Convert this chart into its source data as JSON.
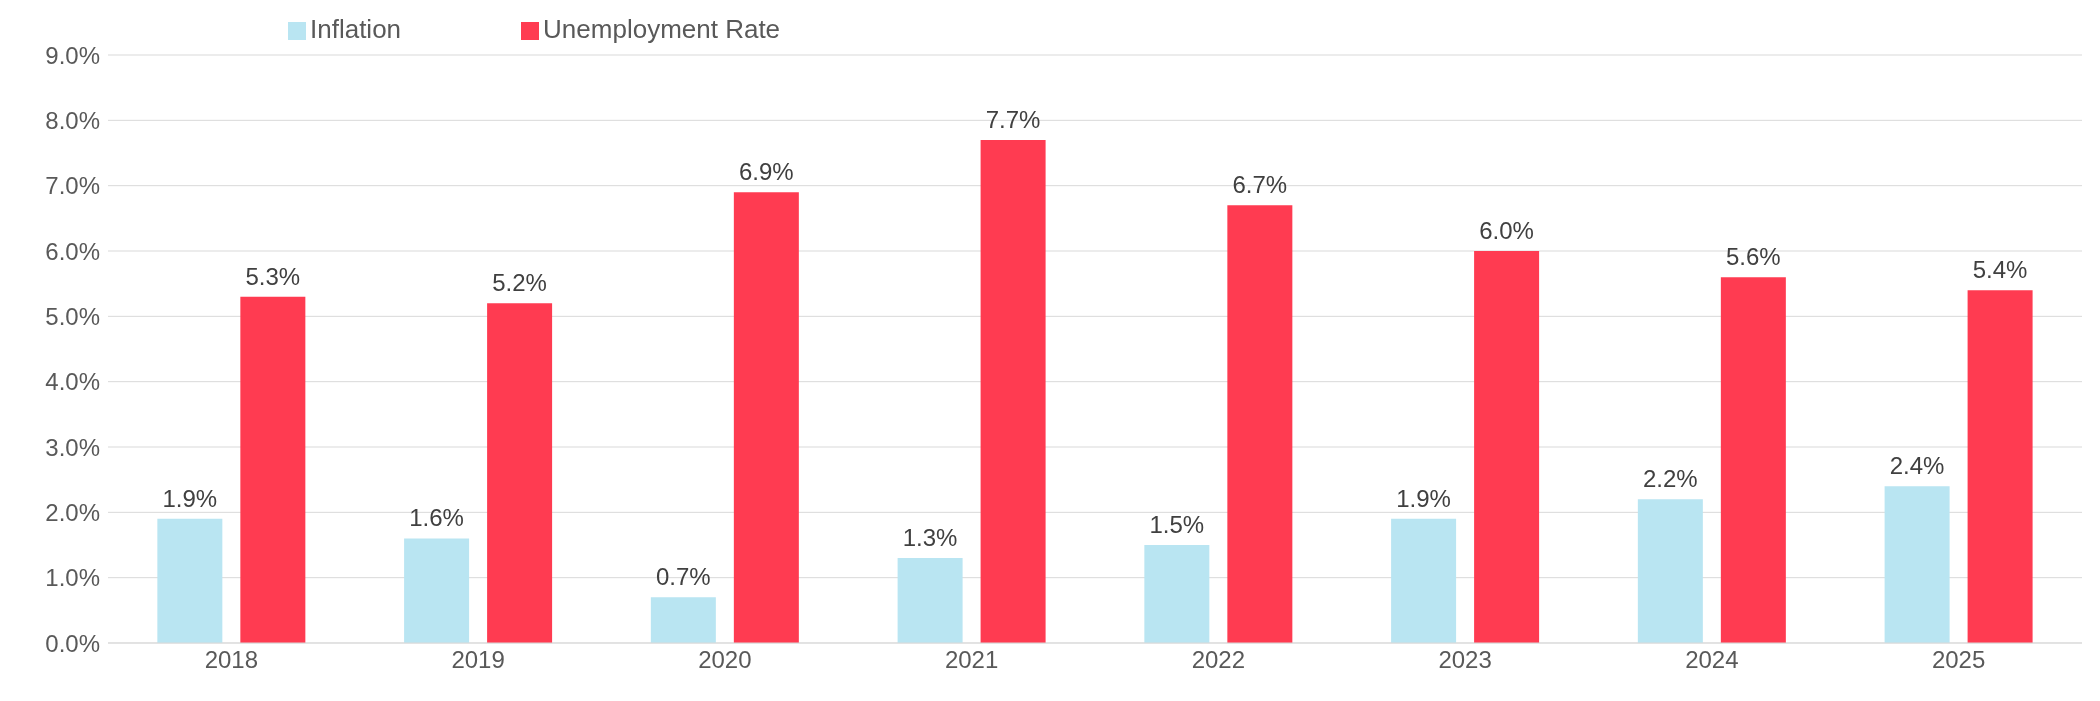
{
  "chart_data": {
    "type": "bar",
    "categories": [
      "2018",
      "2019",
      "2020",
      "2021",
      "2022",
      "2023",
      "2024",
      "2025"
    ],
    "series": [
      {
        "name": "Inflation",
        "color": "#b9e5f2",
        "values": [
          1.9,
          1.6,
          0.7,
          1.3,
          1.5,
          1.9,
          2.2,
          2.4
        ],
        "value_labels": [
          "1.9%",
          "1.6%",
          "0.7%",
          "1.3%",
          "1.5%",
          "1.9%",
          "2.2%",
          "2.4%"
        ]
      },
      {
        "name": "Unemployment Rate",
        "color": "#ff3b51",
        "values": [
          5.3,
          5.2,
          6.9,
          7.7,
          6.7,
          6.0,
          5.6,
          5.4
        ],
        "value_labels": [
          "5.3%",
          "5.2%",
          "6.9%",
          "7.7%",
          "6.7%",
          "6.0%",
          "5.6%",
          "5.4%"
        ]
      }
    ],
    "ylim": [
      0,
      9
    ],
    "yticks": [
      {
        "value": 0,
        "label": "0.0%"
      },
      {
        "value": 1,
        "label": "1.0%"
      },
      {
        "value": 2,
        "label": "2.0%"
      },
      {
        "value": 3,
        "label": "3.0%"
      },
      {
        "value": 4,
        "label": "4.0%"
      },
      {
        "value": 5,
        "label": "5.0%"
      },
      {
        "value": 6,
        "label": "6.0%"
      },
      {
        "value": 7,
        "label": "7.0%"
      },
      {
        "value": 8,
        "label": "8.0%"
      },
      {
        "value": 9,
        "label": "9.0%"
      }
    ],
    "grid": "y",
    "legend": "top left"
  }
}
